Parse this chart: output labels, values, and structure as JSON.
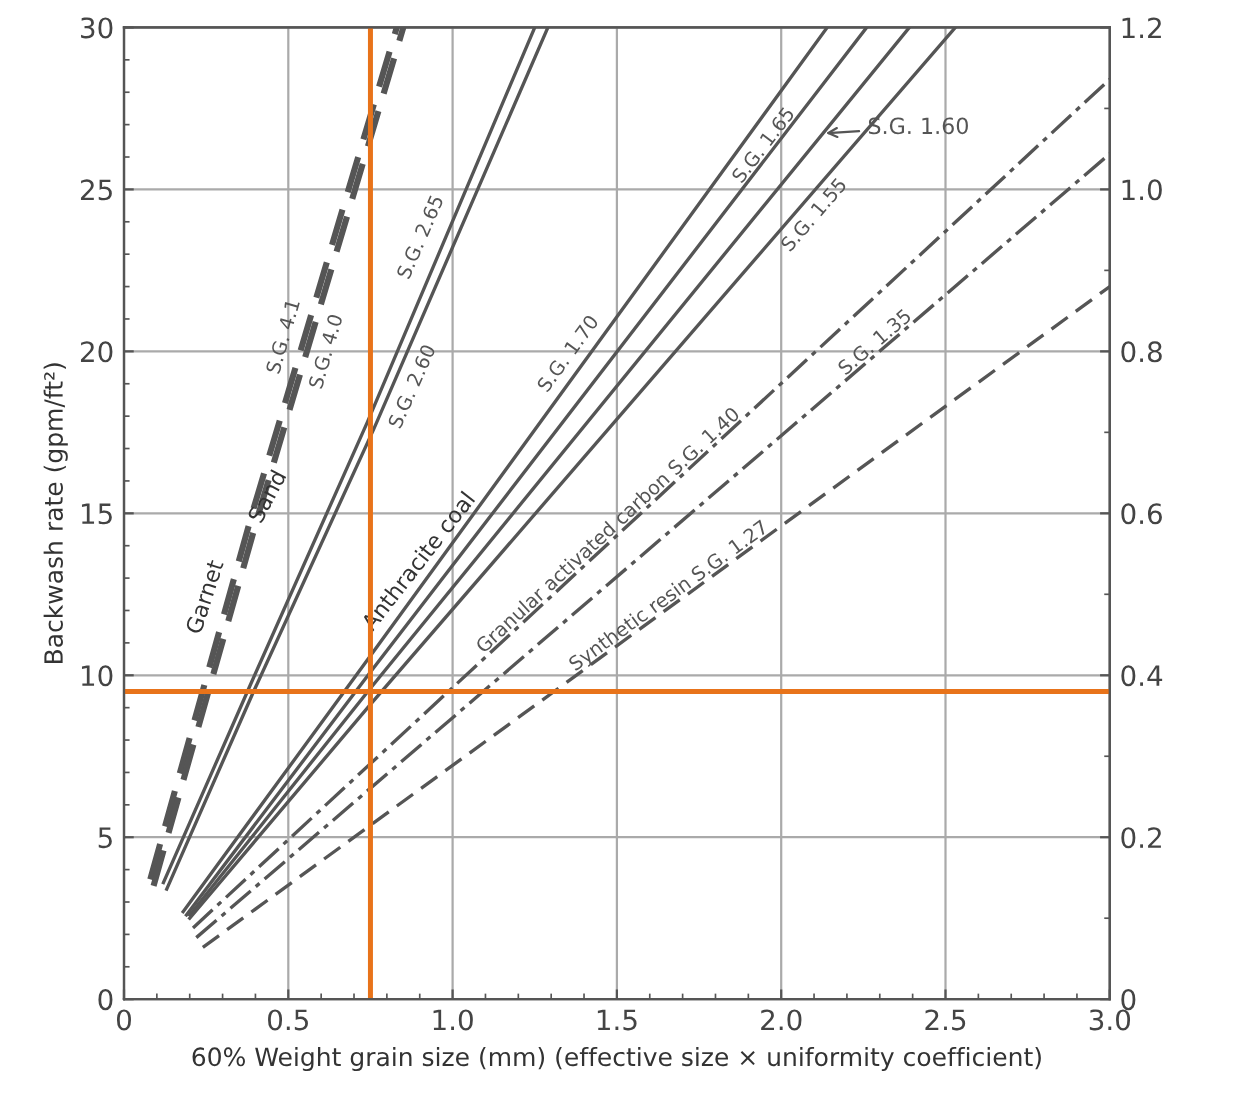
{
  "chart_data": {
    "type": "line",
    "xlabel": "60% Weight grain size (mm) (effective size × uniformity coefficient)",
    "ylabel": "Backwash rate (gpm/ft²)",
    "xlim": [
      0,
      3
    ],
    "xticks": [
      0,
      0.5,
      {
        "value": 1,
        "label": "1.0"
      },
      1.5,
      {
        "value": 2,
        "label": "2.0"
      },
      2.5,
      {
        "value": 3,
        "label": "3.0"
      }
    ],
    "ylim": [
      0,
      30
    ],
    "yticks": [
      0,
      5,
      10,
      15,
      20,
      25,
      30
    ],
    "y2lim": [
      0,
      1.2
    ],
    "y2ticks": [
      0,
      0.2,
      0.4,
      0.6,
      0.8,
      {
        "value": 1.0,
        "label": "1.0"
      },
      1.2
    ],
    "grid": true,
    "marker": "none",
    "series": [
      {
        "name": "S.G. 4.1",
        "color": "#555555",
        "line_style": "dashed",
        "x": [
          0.08,
          0.39,
          0.83
        ],
        "values": [
          3.7,
          15,
          30
        ]
      },
      {
        "name": "S.G. 4.0",
        "color": "#555555",
        "line_style": "dashed",
        "x": [
          0.09,
          0.41,
          0.85
        ],
        "values": [
          3.5,
          15,
          30
        ]
      },
      {
        "name": "S.G. 2.65",
        "color": "#555555",
        "line_style": "solid",
        "x": [
          0.12,
          0.38,
          0.74,
          1.25
        ],
        "values": [
          3.6,
          9.6,
          17.8,
          30
        ]
      },
      {
        "name": "S.G. 2.60",
        "color": "#555555",
        "line_style": "solid",
        "x": [
          0.13,
          0.39,
          0.76,
          1.29
        ],
        "values": [
          3.4,
          9.4,
          17.6,
          30
        ]
      },
      {
        "name": "S.G. 1.70",
        "color": "#555555",
        "line_style": "solid",
        "x": [
          0.18,
          0.75,
          2.14
        ],
        "values": [
          2.7,
          10.6,
          30
        ]
      },
      {
        "name": "S.G. 1.65",
        "color": "#555555",
        "line_style": "solid",
        "x": [
          0.19,
          0.75,
          2.26
        ],
        "values": [
          2.6,
          10.1,
          30
        ]
      },
      {
        "name": "S.G. 1.60",
        "color": "#555555",
        "line_style": "solid",
        "x": [
          0.2,
          0.75,
          2.39
        ],
        "values": [
          2.6,
          9.6,
          30
        ]
      },
      {
        "name": "S.G. 1.55",
        "color": "#555555",
        "line_style": "solid",
        "x": [
          0.2,
          0.75,
          2.53
        ],
        "values": [
          2.5,
          9.1,
          30
        ]
      },
      {
        "name": "Granular activated carbon S.G. 1.40",
        "color": "#555555",
        "line_style": "dashdot",
        "x": [
          0.21,
          3.0
        ],
        "values": [
          2.2,
          28.4
        ]
      },
      {
        "name": "S.G. 1.35",
        "color": "#555555",
        "line_style": "dashdot",
        "x": [
          0.22,
          3.0
        ],
        "values": [
          1.9,
          26.1
        ]
      },
      {
        "name": "Synthetic resin S.G. 1.27",
        "color": "#555555",
        "line_style": "dashed",
        "x": [
          0.24,
          3.0
        ],
        "values": [
          1.6,
          22.0
        ]
      }
    ],
    "annotations": [
      "Garnet",
      "Sand",
      "Anthracite coal"
    ],
    "ref_lines": [
      {
        "axis": "x",
        "value": 0.75,
        "color": "#e8731a"
      },
      {
        "axis": "y",
        "value": 9.5,
        "color": "#e8731a"
      }
    ]
  }
}
